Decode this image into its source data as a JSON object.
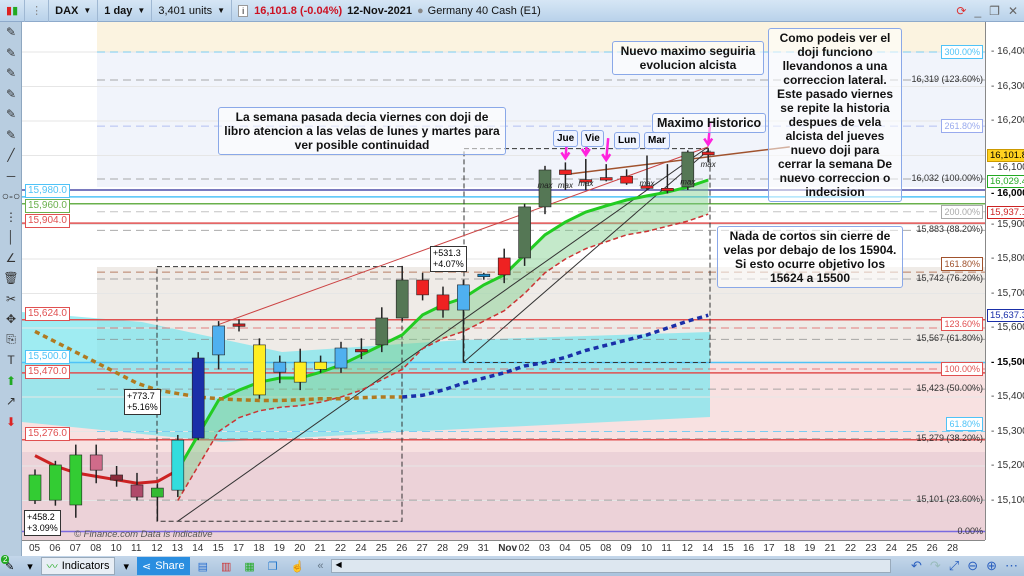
{
  "toolbar": {
    "symbol": "DAX",
    "interval": "1 day",
    "units": "3,401 units",
    "price": "16,101.8 (-0.04%)",
    "date": "12-Nov-2021",
    "instrument": "Germany 40 Cash (E1)",
    "price_color": "#cc1122"
  },
  "left_tools": [
    "line-icon",
    "hline-icon",
    "segment-icon",
    "vsegment-icon",
    "vline-icon",
    "angle-icon",
    "trash-icon",
    "tools-icon",
    "move-icon",
    "copy-icon",
    "text-icon",
    "arrow-up-icon",
    "arrow-icon",
    "arrow-down-icon"
  ],
  "bottom": {
    "indicators": "Indicators",
    "share": "Share",
    "watermark": "© Finance.com  Data is indicative",
    "badge": "2"
  },
  "chart_data": {
    "type": "candlestick",
    "ylim": [
      15030,
      16460
    ],
    "y_ticks": [
      "16,400",
      "16,300",
      "16,200",
      "16,100",
      "16,000",
      "15,900",
      "15,800",
      "15,700",
      "15,600",
      "15,500",
      "15,400",
      "15,300",
      "15,200",
      "15,100"
    ],
    "y_tick_values": [
      16400,
      16300,
      16200,
      16100,
      16000,
      15900,
      15800,
      15700,
      15600,
      15500,
      15400,
      15300,
      15200,
      15100
    ],
    "x_ticks": [
      "05",
      "06",
      "07",
      "08",
      "10",
      "11",
      "12",
      "13",
      "14",
      "15",
      "17",
      "18",
      "19",
      "20",
      "21",
      "22",
      "24",
      "25",
      "26",
      "27",
      "28",
      "29",
      "31",
      "Nov",
      "02",
      "03",
      "04",
      "05",
      "08",
      "09",
      "10",
      "11",
      "12",
      "14",
      "15",
      "16",
      "17",
      "18",
      "19",
      "21",
      "22",
      "23",
      "24",
      "25",
      "26",
      "28"
    ],
    "candles": [
      {
        "o": 15100,
        "h": 15190,
        "l": 15090,
        "c": 15174,
        "color": "#33cc33"
      },
      {
        "o": 15101,
        "h": 15215,
        "l": 15085,
        "c": 15203,
        "color": "#33cc33"
      },
      {
        "o": 15087,
        "h": 15262,
        "l": 15050,
        "c": 15232,
        "color": "#33cc33"
      },
      {
        "o": 15232,
        "h": 15262,
        "l": 15150,
        "c": 15188,
        "color": "#d06b8a"
      },
      {
        "o": 15174,
        "h": 15200,
        "l": 15140,
        "c": 15159,
        "color": "#8b2a3a"
      },
      {
        "o": 15145,
        "h": 15180,
        "l": 15100,
        "c": 15110,
        "color": "#b04a6a"
      },
      {
        "o": 15110,
        "h": 15150,
        "l": 15040,
        "c": 15136,
        "color": "#33bb33"
      },
      {
        "o": 15130,
        "h": 15290,
        "l": 15110,
        "c": 15275,
        "color": "#33dddd"
      },
      {
        "o": 15281,
        "h": 15530,
        "l": 15275,
        "c": 15513,
        "color": "#1a2fa8"
      },
      {
        "o": 15522,
        "h": 15620,
        "l": 15480,
        "c": 15606,
        "color": "#4fb0f0"
      },
      {
        "o": 15610,
        "h": 15625,
        "l": 15590,
        "c": 15612,
        "color": "#c02020"
      },
      {
        "o": 15551,
        "h": 15570,
        "l": 15395,
        "c": 15406,
        "color": "#ffee22"
      },
      {
        "o": 15472,
        "h": 15520,
        "l": 15440,
        "c": 15501,
        "color": "#4fb0f0"
      },
      {
        "o": 15501,
        "h": 15540,
        "l": 15420,
        "c": 15443,
        "color": "#ffee22"
      },
      {
        "o": 15501,
        "h": 15520,
        "l": 15470,
        "c": 15480,
        "color": "#ffee22"
      },
      {
        "o": 15484,
        "h": 15560,
        "l": 15470,
        "c": 15542,
        "color": "#4fb0f0"
      },
      {
        "o": 15536,
        "h": 15570,
        "l": 15510,
        "c": 15538,
        "color": "#c02020"
      },
      {
        "o": 15551,
        "h": 15660,
        "l": 15530,
        "c": 15629,
        "color": "#557755"
      },
      {
        "o": 15629,
        "h": 15780,
        "l": 15620,
        "c": 15739,
        "color": "#557755"
      },
      {
        "o": 15739,
        "h": 15760,
        "l": 15680,
        "c": 15696,
        "color": "#ee2222"
      },
      {
        "o": 15696,
        "h": 15720,
        "l": 15630,
        "c": 15652,
        "color": "#ee2222"
      },
      {
        "o": 15652,
        "h": 15740,
        "l": 15500,
        "c": 15725,
        "color": "#4fb0f0"
      },
      {
        "o": 15754,
        "h": 15760,
        "l": 15740,
        "c": 15756,
        "color": "#1a8fcf"
      },
      {
        "o": 15803,
        "h": 15830,
        "l": 15730,
        "c": 15754,
        "color": "#ee2222"
      },
      {
        "o": 15803,
        "h": 15960,
        "l": 15780,
        "c": 15951,
        "color": "#557755"
      },
      {
        "o": 15951,
        "h": 16070,
        "l": 15930,
        "c": 16058,
        "color": "#557755"
      },
      {
        "o": 16058,
        "h": 16080,
        "l": 16000,
        "c": 16045,
        "color": "#ee2222"
      },
      {
        "o": 16030,
        "h": 16090,
        "l": 16000,
        "c": 16028,
        "color": "#ee2222"
      },
      {
        "o": 16036,
        "h": 16075,
        "l": 16025,
        "c": 16036,
        "color": "#ee2222"
      },
      {
        "o": 16040,
        "h": 16060,
        "l": 16015,
        "c": 16020,
        "color": "#ee2222"
      },
      {
        "o": 16010,
        "h": 16100,
        "l": 16000,
        "c": 16012,
        "color": "#ee2222"
      },
      {
        "o": 16005,
        "h": 16075,
        "l": 15990,
        "c": 16003,
        "color": "#ee2222"
      },
      {
        "o": 16009,
        "h": 16115,
        "l": 16000,
        "c": 16110,
        "color": "#557755"
      },
      {
        "o": 16110,
        "h": 16120,
        "l": 16080,
        "c": 16102,
        "color": "#ee2222"
      }
    ],
    "series": [
      {
        "color": "#22cc22",
        "style": "solid",
        "start": 7,
        "values": [
          15188,
          15290,
          15391,
          15420,
          15443,
          15455,
          15455,
          15472,
          15493,
          15522,
          15551,
          15580,
          15638,
          15667,
          15687,
          15725,
          15754,
          15812,
          15870,
          15907,
          15936,
          15954,
          15971,
          15983,
          15994,
          16009,
          16029
        ]
      },
      {
        "color": "#cc2222",
        "style": "solid",
        "start": 0,
        "values": [
          15230,
          15200,
          15180,
          15170,
          15160,
          15150,
          15155,
          15188
        ]
      },
      {
        "color": "#cc3333",
        "style": "dashed",
        "start": 7,
        "values": [
          15100,
          15200,
          15300,
          15340,
          15360,
          15370,
          15375,
          15385,
          15400,
          15420,
          15450,
          15480,
          15540,
          15570,
          15590,
          15620,
          15650,
          15700,
          15760,
          15800,
          15830,
          15850,
          15870,
          15880,
          15895,
          15910,
          15930
        ]
      },
      {
        "color": "#b07a20",
        "style": "dotted",
        "start": 0,
        "values": [
          15590,
          15560,
          15530,
          15500,
          15470,
          15440,
          15420,
          15410,
          15400,
          15395,
          15392,
          15390,
          15390,
          15392,
          15395,
          15395,
          15398,
          15400,
          15400
        ]
      },
      {
        "color": "#1a2fa8",
        "style": "dotted",
        "start": 18,
        "values": [
          15400,
          15405,
          15420,
          15440,
          15455,
          15470,
          15490,
          15500,
          15515,
          15535,
          15550,
          15565,
          15580,
          15600,
          15620,
          15637
        ]
      }
    ],
    "hlines": [
      {
        "price": 15980,
        "label": "15,980.0",
        "color": "#4fc3f7"
      },
      {
        "price": 15960,
        "label": "15,960.0",
        "color": "#6ab04c"
      },
      {
        "price": 15904,
        "label": "15,904.0",
        "color": "#e05050"
      },
      {
        "price": 15624,
        "label": "15,624.0",
        "color": "#e05050"
      },
      {
        "price": 15500,
        "label": "15,500.0",
        "color": "#4fc3f7"
      },
      {
        "price": 15470,
        "label": "15,470.0",
        "color": "#e05050"
      },
      {
        "price": 15276,
        "label": "15,276.0",
        "color": "#e05050"
      }
    ],
    "fib_labels": [
      {
        "price": 16400,
        "text": "300.00%",
        "color": "#4fc3f7"
      },
      {
        "price": 16319,
        "text": "16,319 (123.60%)",
        "color": "#333"
      },
      {
        "price": 16185,
        "text": "261.80%",
        "color": "#99aaee"
      },
      {
        "price": 16032,
        "text": "16,032 (100.00%)",
        "color": "#333"
      },
      {
        "price": 15937,
        "text": "200.00%",
        "color": "#aaaaaa"
      },
      {
        "price": 15883,
        "text": "15,883 (88.20%)",
        "color": "#333"
      },
      {
        "price": 15762,
        "text": "161.80%",
        "color": "#a0522d"
      },
      {
        "price": 15742,
        "text": "15,742 (76.20%)",
        "color": "#333"
      },
      {
        "price": 15600,
        "text": "123.60%",
        "color": "#e05050"
      },
      {
        "price": 15567,
        "text": "15,567 (61.80%)",
        "color": "#333"
      },
      {
        "price": 15481,
        "text": "100.00%",
        "color": "#e05050"
      },
      {
        "price": 15423,
        "text": "15,423 (50.00%)",
        "color": "#333"
      },
      {
        "price": 15300,
        "text": "61.80%",
        "color": "#4fc3f7"
      },
      {
        "price": 15279,
        "text": "15,279 (38.20%)",
        "color": "#333"
      },
      {
        "price": 15101,
        "text": "15,101 (23.60%)",
        "color": "#333"
      },
      {
        "price": 15010,
        "text": "0.00%",
        "color": "#333"
      }
    ],
    "price_tags": [
      {
        "price": 16101.8,
        "text": "16,101.8",
        "bg": "#ffd21f",
        "color": "#000"
      },
      {
        "price": 16029.4,
        "text": "16,029.4",
        "bg": "#fff",
        "color": "#22aa22"
      },
      {
        "price": 15937.1,
        "text": "15,937.1",
        "bg": "#fff",
        "color": "#cc2222"
      },
      {
        "price": 15637.3,
        "text": "15,637.3",
        "bg": "#fff",
        "color": "#1a2fa8"
      }
    ]
  },
  "annotations": {
    "note1": "La semana pasada decia viernes con doji de libro atencion a las velas de lunes y martes para ver posible continuidad",
    "note2": "Nuevo maximo seguiria evolucion alcista",
    "note3": "Maximo Historico",
    "note4": "Como podeis ver el doji funciono llevandonos a una correccion lateral. Este pasado viernes se repite la historia despues de vela alcista del jueves nuevo doji para cerrar la semana De nuevo correccion o indecision",
    "note5": "Nada de cortos sin cierre de velas por debajo de los 15904. Si esto ocurre objetivo los 15624 a 15500",
    "days": [
      "Jue",
      "Vie",
      "Lun",
      "Mar"
    ],
    "max": "max",
    "measure1": [
      "+531.3",
      "+4.07%"
    ],
    "measure2": [
      "+773.7",
      "+5.16%"
    ],
    "measure3": [
      "+458.2",
      "+3.09%"
    ]
  }
}
